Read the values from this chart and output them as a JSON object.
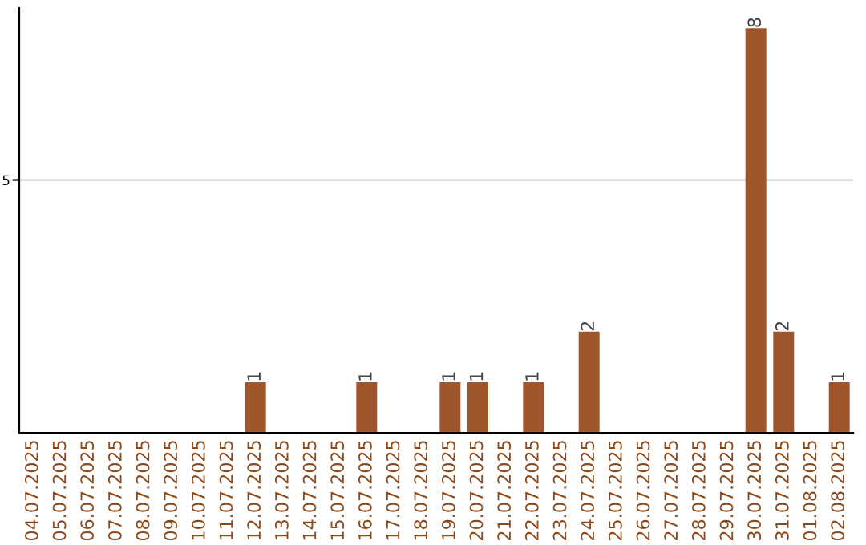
{
  "chart_data": {
    "type": "bar",
    "categories": [
      "04.07.2025",
      "05.07.2025",
      "06.07.2025",
      "07.07.2025",
      "08.07.2025",
      "09.07.2025",
      "10.07.2025",
      "11.07.2025",
      "12.07.2025",
      "13.07.2025",
      "14.07.2025",
      "15.07.2025",
      "16.07.2025",
      "17.07.2025",
      "18.07.2025",
      "19.07.2025",
      "20.07.2025",
      "21.07.2025",
      "22.07.2025",
      "23.07.2025",
      "24.07.2025",
      "25.07.2025",
      "26.07.2025",
      "27.07.2025",
      "28.07.2025",
      "29.07.2025",
      "30.07.2025",
      "31.07.2025",
      "01.08.2025",
      "02.08.2025"
    ],
    "values": [
      0,
      0,
      0,
      0,
      0,
      0,
      0,
      0,
      1,
      0,
      0,
      0,
      1,
      0,
      0,
      1,
      1,
      0,
      1,
      0,
      2,
      0,
      0,
      0,
      0,
      0,
      8,
      2,
      0,
      1
    ],
    "value_labels": [
      null,
      null,
      null,
      null,
      null,
      null,
      null,
      null,
      "1",
      null,
      null,
      null,
      "1",
      null,
      null,
      "1",
      "1",
      null,
      "1",
      null,
      "2",
      null,
      null,
      null,
      null,
      null,
      "8",
      "2",
      null,
      "1"
    ],
    "color": "#a0562c",
    "ylim": [
      0,
      8.4
    ],
    "yticks": [
      5
    ],
    "grid": "y"
  }
}
